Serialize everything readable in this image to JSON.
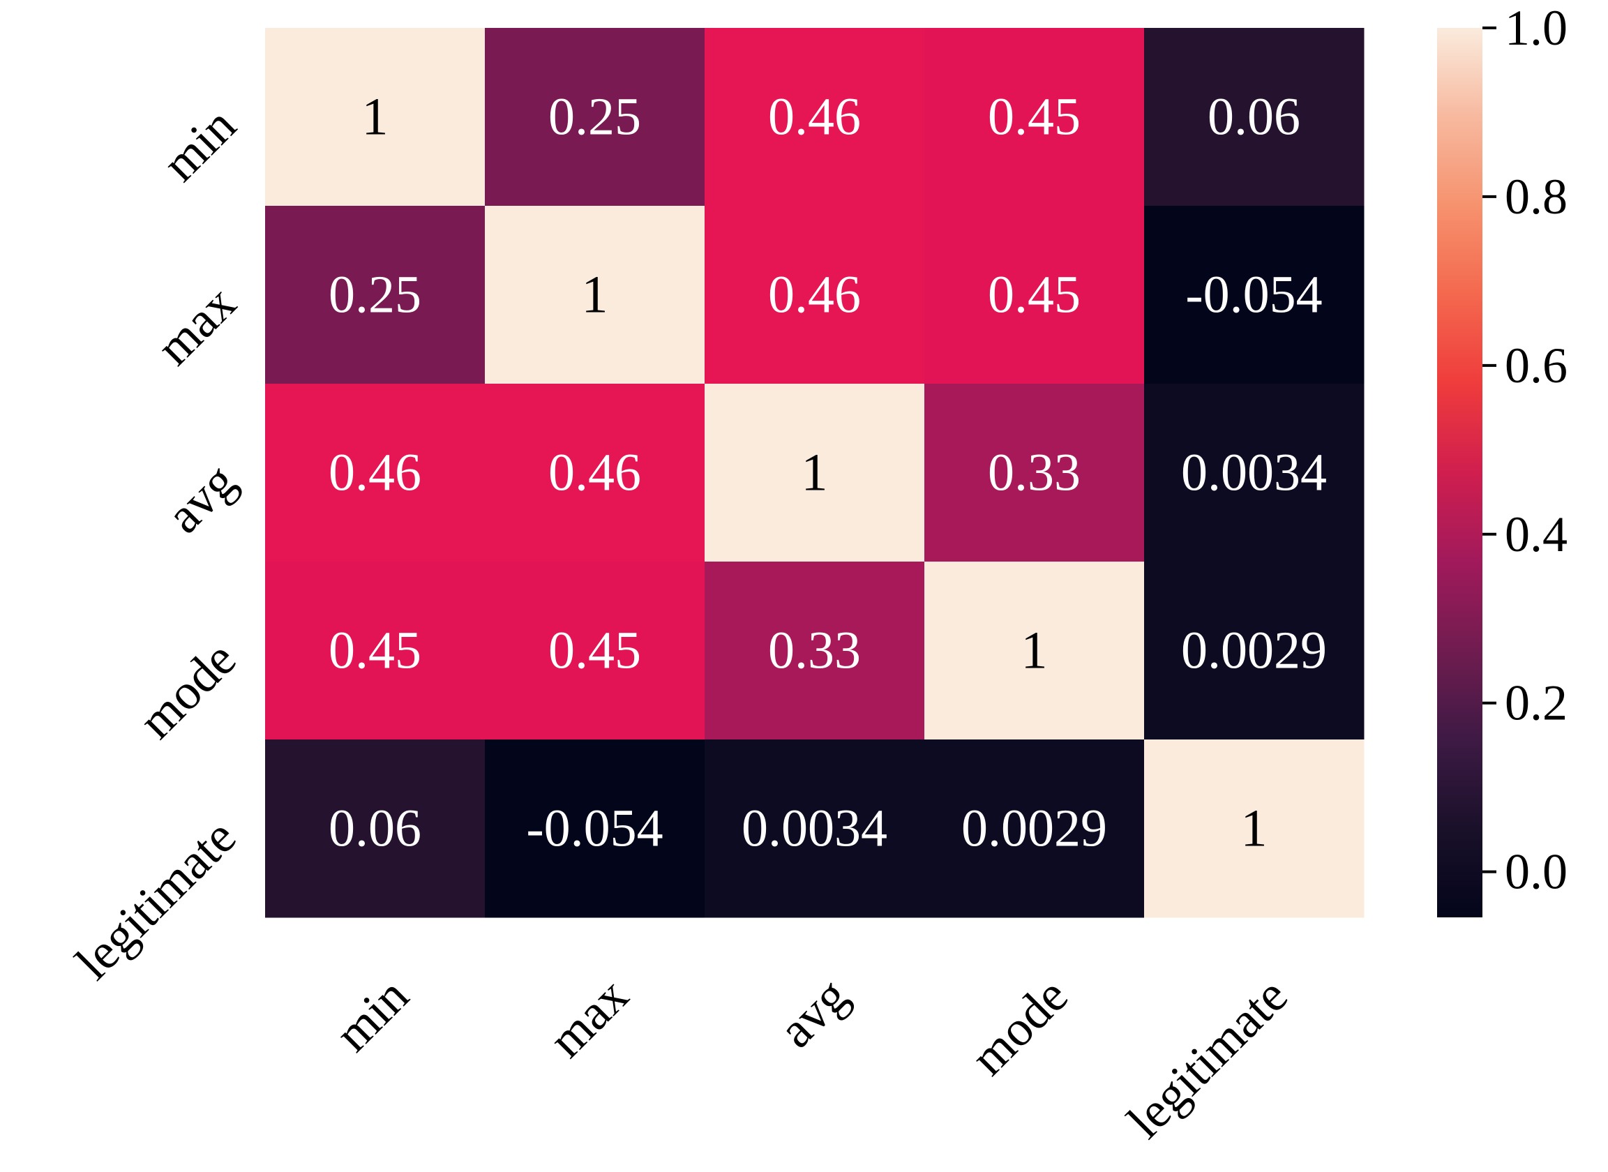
{
  "chart_data": {
    "type": "heatmap",
    "title": "",
    "xlabel": "",
    "ylabel": "",
    "x_categories": [
      "min",
      "max",
      "avg",
      "mode",
      "legitimate"
    ],
    "y_categories": [
      "min",
      "max",
      "avg",
      "mode",
      "legitimate"
    ],
    "values": [
      [
        1,
        0.25,
        0.46,
        0.45,
        0.06
      ],
      [
        0.25,
        1,
        0.46,
        0.45,
        -0.054
      ],
      [
        0.46,
        0.46,
        1,
        0.33,
        0.0034
      ],
      [
        0.45,
        0.45,
        0.33,
        1,
        0.0029
      ],
      [
        0.06,
        -0.054,
        0.0034,
        0.0029,
        1
      ]
    ],
    "cell_labels": [
      [
        "1",
        "0.25",
        "0.46",
        "0.45",
        "0.06"
      ],
      [
        "0.25",
        "1",
        "0.46",
        "0.45",
        "-0.054"
      ],
      [
        "0.46",
        "0.46",
        "1",
        "0.33",
        "0.0034"
      ],
      [
        "0.45",
        "0.45",
        "0.33",
        "1",
        "0.0029"
      ],
      [
        "0.06",
        "-0.054",
        "0.0034",
        "0.0029",
        "1"
      ]
    ],
    "colorbar": {
      "range": [
        -0.054,
        1
      ],
      "ticks": [
        0.0,
        0.2,
        0.4,
        0.6,
        0.8,
        1.0
      ],
      "tick_labels": [
        "0.0",
        "0.2",
        "0.4",
        "0.6",
        "0.8",
        "1.0"
      ],
      "colormap": "rocket"
    },
    "colors": {
      "v_min": "#03051a",
      "v_0_0": "#0c0b22",
      "v_0_06": "#25122e",
      "v_0_25": "#7a1a52",
      "v_0_33": "#a8195a",
      "v_0_45": "#e31455",
      "v_0_46": "#e61553",
      "v_1": "#faebdd",
      "text_dark": "#000000",
      "text_light": "#ffffff"
    }
  }
}
